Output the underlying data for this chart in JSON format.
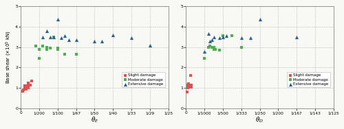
{
  "left": {
    "title": "$\\theta_E$",
    "ylabel": "Base shear ($\\times$10$^5$ kN)",
    "xlim": [
      0,
      0.04
    ],
    "ylim": [
      0,
      5
    ],
    "xticks": [
      0,
      0.005,
      0.01,
      0.015,
      0.02,
      0.025,
      0.03,
      0.035,
      0.04
    ],
    "xtick_labels": [
      "0",
      "1/200",
      "1/100",
      "1/67",
      "1/50",
      "1/40",
      "1/33",
      "1/29",
      "1/25"
    ],
    "yticks": [
      0,
      1,
      2,
      3,
      4,
      5
    ],
    "slight": {
      "x": [
        0.0005,
        0.0008,
        0.001,
        0.001,
        0.0012,
        0.0015,
        0.0015,
        0.002,
        0.002,
        0.002,
        0.0025,
        0.003
      ],
      "y": [
        0.85,
        0.9,
        1.0,
        1.1,
        1.05,
        0.95,
        1.1,
        1.0,
        1.1,
        1.25,
        1.15,
        1.35
      ]
    },
    "moderate": {
      "x": [
        0.004,
        0.005,
        0.005,
        0.006,
        0.007,
        0.007,
        0.008,
        0.009,
        0.01,
        0.01,
        0.012,
        0.015
      ],
      "y": [
        3.05,
        2.45,
        2.9,
        3.05,
        2.9,
        3.0,
        2.95,
        3.5,
        2.95,
        2.9,
        2.65,
        2.65
      ]
    },
    "extensive": {
      "x": [
        0.006,
        0.007,
        0.008,
        0.009,
        0.01,
        0.011,
        0.012,
        0.013,
        0.015,
        0.02,
        0.022,
        0.025,
        0.03,
        0.035
      ],
      "y": [
        3.5,
        3.8,
        3.5,
        3.5,
        4.35,
        3.45,
        3.55,
        3.35,
        3.35,
        3.3,
        3.3,
        3.6,
        3.45,
        3.1
      ]
    }
  },
  "right": {
    "title": "$\\theta_D$",
    "xlim": [
      0,
      0.008
    ],
    "ylim": [
      0,
      5
    ],
    "xticks": [
      0,
      0.001,
      0.002,
      0.003,
      0.004,
      0.005,
      0.006,
      0.007,
      0.008
    ],
    "xtick_labels": [
      "0",
      "1/1000",
      "1/500",
      "1/333",
      "1/250",
      "1/200",
      "1/167",
      "1/143",
      "1/125"
    ],
    "yticks": [
      0,
      1,
      2,
      3,
      4,
      5
    ],
    "slight": {
      "x": [
        8e-05,
        0.0001,
        0.0001,
        0.00012,
        0.00015,
        0.00015,
        0.0002,
        0.0002,
        0.00022,
        0.00025,
        0.0003,
        0.0003
      ],
      "y": [
        0.8,
        1.0,
        1.15,
        1.1,
        1.1,
        1.2,
        1.05,
        1.15,
        1.1,
        1.6,
        1.05,
        1.15
      ]
    },
    "moderate": {
      "x": [
        0.001,
        0.0012,
        0.0013,
        0.0014,
        0.0015,
        0.0015,
        0.0016,
        0.0018,
        0.002,
        0.0025,
        0.003
      ],
      "y": [
        2.45,
        3.0,
        3.05,
        3.0,
        2.9,
        3.0,
        2.9,
        2.85,
        3.55,
        3.55,
        3.0
      ]
    },
    "extensive": {
      "x": [
        0.001,
        0.0012,
        0.0013,
        0.0014,
        0.0015,
        0.0018,
        0.002,
        0.0022,
        0.003,
        0.0035,
        0.004,
        0.006
      ],
      "y": [
        2.8,
        3.65,
        3.3,
        3.35,
        3.5,
        3.45,
        3.5,
        3.55,
        3.45,
        3.45,
        4.35,
        3.5
      ]
    }
  },
  "slight_color": "#e05050",
  "moderate_color": "#4cae4c",
  "extensive_color": "#2a6099",
  "marker_size": 10,
  "bg_color": "#f8f8f4"
}
